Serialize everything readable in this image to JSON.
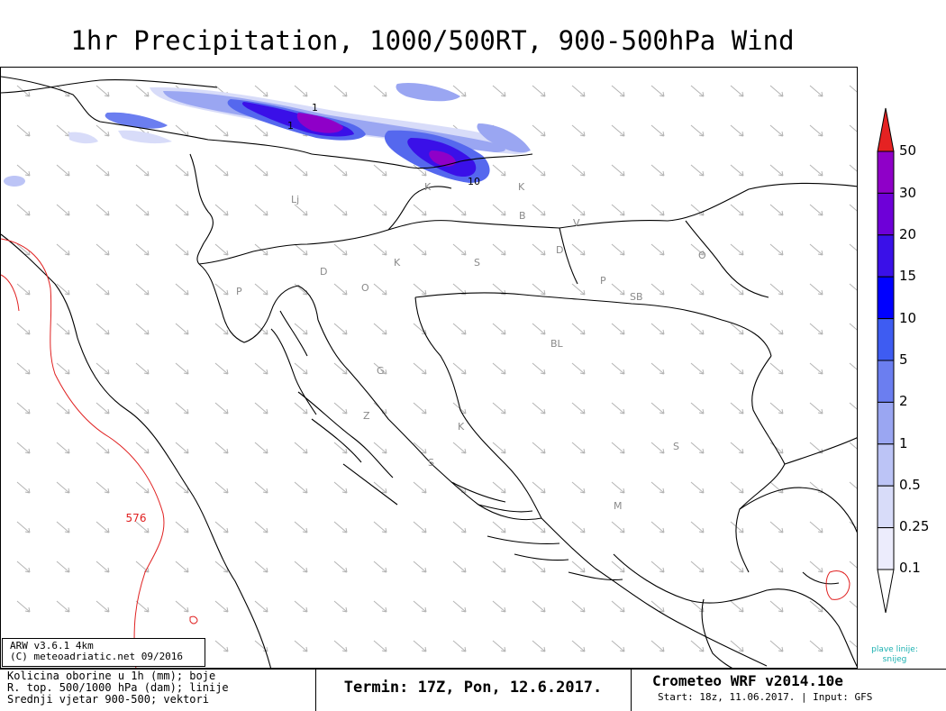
{
  "title": "1hr Precipitation, 1000/500RT, 900-500hPa Wind",
  "map": {
    "contour_label": "576",
    "precip_labels": [
      "1",
      "1",
      "10"
    ],
    "city_labels": [
      {
        "text": "Lj"
      },
      {
        "text": "K"
      },
      {
        "text": "K"
      },
      {
        "text": "B"
      },
      {
        "text": "V"
      },
      {
        "text": "D"
      },
      {
        "text": "K"
      },
      {
        "text": "S"
      },
      {
        "text": "D"
      },
      {
        "text": "P"
      },
      {
        "text": "O"
      },
      {
        "text": "P"
      },
      {
        "text": "SB"
      },
      {
        "text": "O"
      },
      {
        "text": "BL"
      },
      {
        "text": "G"
      },
      {
        "text": "Z"
      },
      {
        "text": "K"
      },
      {
        "text": "S"
      },
      {
        "text": "S"
      },
      {
        "text": "M"
      }
    ]
  },
  "model_box": {
    "line1": "ARW v3.6.1  4km",
    "line2": "(C) meteoadriatic.net 09/2016"
  },
  "description": {
    "line1": "Kolicina oborine u 1h (mm); boje",
    "line2": "R. top. 500/1000 hPa (dam); linije",
    "line3": "Srednji vjetar 900-500; vektori"
  },
  "termin": "Termin: 17Z, Pon, 12.6.2017.",
  "crometeo": {
    "title": "Crometeo WRF v2014.10e",
    "subtitle": "Start: 18z, 11.06.2017. | Input: GFS"
  },
  "legend": {
    "labels": [
      "50",
      "30",
      "20",
      "15",
      "10",
      "5",
      "2",
      "1",
      "0.5",
      "0.25",
      "0.1"
    ],
    "colors": [
      "#e52222",
      "#8f00c8",
      "#6e00d8",
      "#3a10e8",
      "#0000ff",
      "#3e5cf2",
      "#6b7ef0",
      "#9aa6f2",
      "#bcc4f6",
      "#d8dcf9",
      "#ececfc",
      "#ffffff"
    ],
    "note_line1": "plave linije:",
    "note_line2": "snijeg"
  }
}
